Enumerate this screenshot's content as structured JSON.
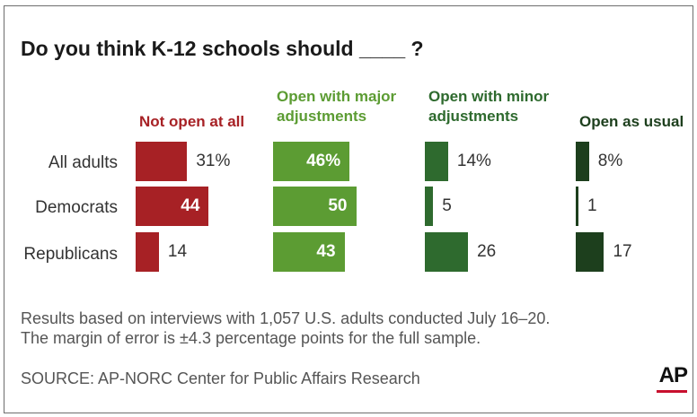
{
  "title": "Do you think K-12 schools should ____ ?",
  "groups": [
    "All adults",
    "Democrats",
    "Republicans"
  ],
  "columns": [
    {
      "label_line1": "",
      "label_line2": "Not open at all",
      "color": "#a72125",
      "head_color": "#a72125",
      "labels": [
        "31%",
        "44",
        "14"
      ]
    },
    {
      "label_line1": "Open with major",
      "label_line2": "adjustments",
      "color": "#5c9c33",
      "head_color": "#5c9c33",
      "labels": [
        "46%",
        "50",
        "43"
      ]
    },
    {
      "label_line1": "Open with minor",
      "label_line2": "adjustments",
      "color": "#2e6a2e",
      "head_color": "#2e6a2e",
      "labels": [
        "14%",
        "5",
        "26"
      ]
    },
    {
      "label_line1": "",
      "label_line2": "Open as usual",
      "color": "#1d3f1d",
      "head_color": "#1d3f1d",
      "labels": [
        "8%",
        "1",
        "17"
      ]
    }
  ],
  "chart_data": {
    "type": "bar",
    "title": "Do you think K-12 schools should ____ ?",
    "categories": [
      "All adults",
      "Democrats",
      "Republicans"
    ],
    "series": [
      {
        "name": "Not open at all",
        "values": [
          31,
          44,
          14
        ]
      },
      {
        "name": "Open with major adjustments",
        "values": [
          46,
          50,
          43
        ]
      },
      {
        "name": "Open with minor adjustments",
        "values": [
          14,
          5,
          26
        ]
      },
      {
        "name": "Open as usual",
        "values": [
          8,
          1,
          17
        ]
      }
    ],
    "unit": "%"
  },
  "notes": {
    "line1": "Results based on interviews with 1,057 U.S. adults conducted July 16–20.",
    "line2": "The margin of error is ±4.3 percentage points for the full sample.",
    "source": "SOURCE: AP-NORC Center for Public Affairs Research"
  },
  "logo": "AP"
}
